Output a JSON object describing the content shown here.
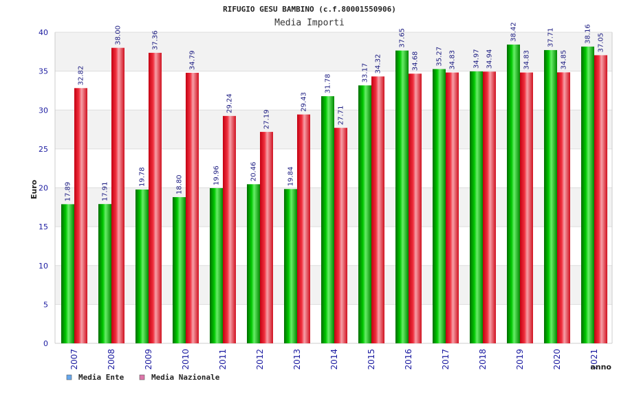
{
  "chart_data": {
    "type": "bar",
    "title": "RIFUGIO GESU BAMBINO (c.f.80001550906)",
    "subtitle": "Media Importi",
    "xlabel": "anno",
    "ylabel": "Euro",
    "ylim": [
      0,
      40
    ],
    "yticks": [
      0,
      5,
      10,
      15,
      20,
      25,
      30,
      35,
      40
    ],
    "grid": true,
    "legend_position": "bottom-left",
    "categories": [
      "2007",
      "2008",
      "2009",
      "2010",
      "2011",
      "2012",
      "2013",
      "2014",
      "2015",
      "2016",
      "2017",
      "2018",
      "2019",
      "2020",
      "2021"
    ],
    "series": [
      {
        "name": "Media Ente",
        "bar_color": "#00aa00",
        "legend_color": "#66a8ee",
        "values": [
          17.89,
          17.91,
          19.78,
          18.8,
          19.96,
          20.46,
          19.84,
          31.78,
          33.17,
          37.65,
          35.27,
          34.97,
          38.42,
          37.71,
          38.16
        ],
        "labels": [
          "17.89",
          "17.91",
          "19.78",
          "18.80",
          "19.96",
          "20.46",
          "19.84",
          "31.78",
          "33.17",
          "37.65",
          "35.27",
          "34.97",
          "38.42",
          "37.71",
          "38.16"
        ]
      },
      {
        "name": "Media Nazionale",
        "bar_color": "#e8192b",
        "legend_color": "#dd77aa",
        "values": [
          32.82,
          38.0,
          37.36,
          34.79,
          29.24,
          27.19,
          29.43,
          27.71,
          34.32,
          34.68,
          34.83,
          34.94,
          34.83,
          34.85,
          37.05
        ],
        "labels": [
          "32.82",
          "38.00",
          "37.36",
          "34.79",
          "29.24",
          "27.19",
          "29.43",
          "27.71",
          "34.32",
          "34.68",
          "34.83",
          "34.94",
          "34.83",
          "34.85",
          "37.05"
        ]
      }
    ]
  }
}
